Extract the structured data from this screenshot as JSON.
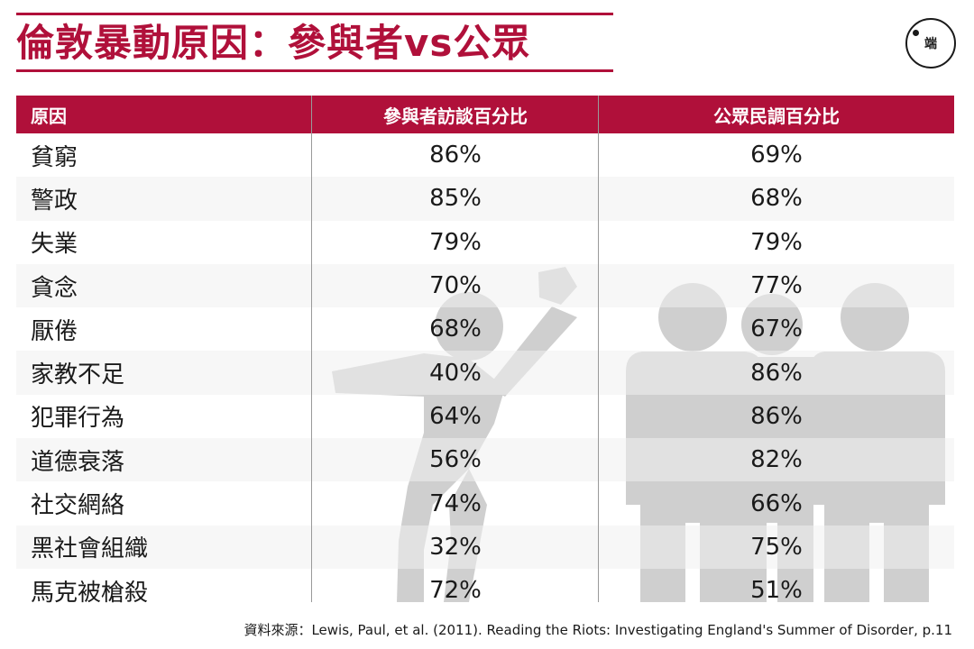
{
  "title": "倫敦暴動原因：參與者vs公眾",
  "logo_text": "端",
  "chart_data": {
    "type": "table",
    "columns": [
      "原因",
      "參與者訪談百分比",
      "公眾民調百分比"
    ],
    "rows": [
      {
        "cause": "貧窮",
        "participants": "86%",
        "public": "69%"
      },
      {
        "cause": "警政",
        "participants": "85%",
        "public": "68%"
      },
      {
        "cause": "失業",
        "participants": "79%",
        "public": "79%"
      },
      {
        "cause": "貪念",
        "participants": "70%",
        "public": "77%"
      },
      {
        "cause": "厭倦",
        "participants": "68%",
        "public": "67%"
      },
      {
        "cause": "家教不足",
        "participants": "40%",
        "public": "86%"
      },
      {
        "cause": "犯罪行為",
        "participants": "64%",
        "public": "86%"
      },
      {
        "cause": "道德衰落",
        "participants": "56%",
        "public": "82%"
      },
      {
        "cause": "社交網絡",
        "participants": "74%",
        "public": "66%"
      },
      {
        "cause": "黑社會組織",
        "participants": "32%",
        "public": "75%"
      },
      {
        "cause": "馬克被槍殺",
        "participants": "72%",
        "public": "51%"
      }
    ]
  },
  "source": "資料來源：Lewis, Paul, et al. (2011). Reading the Riots: Investigating England's Summer of Disorder, p.11",
  "colors": {
    "accent": "#b0103a",
    "figure": "#cfcfcf"
  }
}
